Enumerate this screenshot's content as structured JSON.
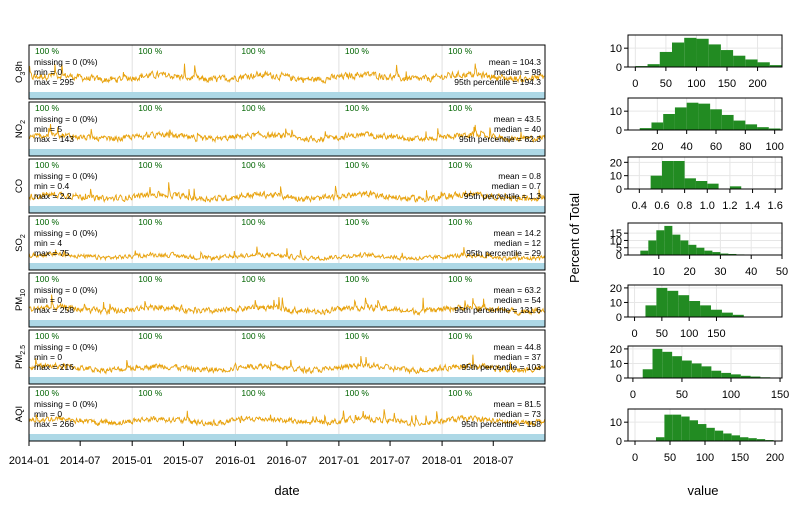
{
  "chart_data": [
    {
      "type": "line",
      "title": "",
      "xlabel": "date",
      "x_ticks": [
        "2014-01",
        "2014-07",
        "2015-01",
        "2015-07",
        "2016-01",
        "2016-07",
        "2017-01",
        "2017-07",
        "2018-01",
        "2018-07"
      ],
      "xlim": [
        "2014-01-01",
        "2018-12-31"
      ],
      "series_color": "#E8A20C",
      "coverage_bar_color": "#ADD8E6",
      "coverage_text_color": "#006400",
      "panels": [
        {
          "label_main": "O",
          "label_sub": "3",
          "label_tail": "8h",
          "coverage": [
            "100 %",
            "100 %",
            "100 %",
            "100 %",
            "100 %"
          ],
          "stats_left": [
            "missing = 0 (0%)",
            "min = 0",
            "max = 295"
          ],
          "stats_right": [
            "mean = 104.3",
            "median = 98",
            "95th percentile = 194.3"
          ],
          "profile": {
            "min": 0,
            "base": 95,
            "spread": 45,
            "max": 295,
            "trend": 8
          }
        },
        {
          "label_main": "NO",
          "label_sub": "2",
          "label_tail": "",
          "coverage": [
            "100 %",
            "100 %",
            "100 %",
            "100 %",
            "100 %"
          ],
          "stats_left": [
            "missing = 0 (0%)",
            "min = 5",
            "max = 143"
          ],
          "stats_right": [
            "mean = 43.5",
            "median = 40",
            "95th percentile = 82.3"
          ],
          "profile": {
            "min": 5,
            "base": 40,
            "spread": 18,
            "max": 143,
            "trend": 0
          }
        },
        {
          "label_main": "CO",
          "label_sub": "",
          "label_tail": "",
          "coverage": [
            "100 %",
            "100 %",
            "100 %",
            "100 %",
            "100 %"
          ],
          "stats_left": [
            "missing = 0 (0%)",
            "min = 0.4",
            "max = 2.2"
          ],
          "stats_right": [
            "mean = 0.8",
            "median = 0.7",
            "95th percentile = 1.3"
          ],
          "profile": {
            "min": 0.4,
            "base": 0.75,
            "spread": 0.25,
            "max": 2.2,
            "trend": 0
          }
        },
        {
          "label_main": "SO",
          "label_sub": "2",
          "label_tail": "",
          "coverage": [
            "100 %",
            "100 %",
            "100 %",
            "100 %",
            "100 %"
          ],
          "stats_left": [
            "missing = 0 (0%)",
            "min = 4",
            "max = 75"
          ],
          "stats_right": [
            "mean = 14.2",
            "median = 12",
            "95th percentile = 29"
          ],
          "profile": {
            "min": 4,
            "base": 13,
            "spread": 7,
            "max": 75,
            "trend": -2
          }
        },
        {
          "label_main": "PM",
          "label_sub": "10",
          "label_tail": "",
          "coverage": [
            "100 %",
            "100 %",
            "100 %",
            "100 %",
            "100 %"
          ],
          "stats_left": [
            "missing = 0 (0%)",
            "min = 0",
            "max = 258"
          ],
          "stats_right": [
            "mean = 63.2",
            "median = 54",
            "95th percentile = 131.6"
          ],
          "profile": {
            "min": 0,
            "base": 58,
            "spread": 35,
            "max": 258,
            "trend": 0
          }
        },
        {
          "label_main": "PM",
          "label_sub": "2.5",
          "label_tail": "",
          "coverage": [
            "100 %",
            "100 %",
            "100 %",
            "100 %",
            "100 %"
          ],
          "stats_left": [
            "missing = 0 (0%)",
            "min = 0",
            "max = 216"
          ],
          "stats_right": [
            "mean = 44.8",
            "median = 37",
            "95th percentile = 103"
          ],
          "profile": {
            "min": 0,
            "base": 40,
            "spread": 28,
            "max": 216,
            "trend": 0
          }
        },
        {
          "label_main": "AQI",
          "label_sub": "",
          "label_tail": "",
          "coverage": [
            "100 %",
            "100 %",
            "100 %",
            "100 %",
            "100 %"
          ],
          "stats_left": [
            "missing = 0 (0%)",
            "min = 0",
            "max = 266"
          ],
          "stats_right": [
            "mean = 81.5",
            "median = 73",
            "95th percentile = 158"
          ],
          "profile": {
            "min": 0,
            "base": 75,
            "spread": 35,
            "max": 266,
            "trend": 0
          }
        }
      ]
    },
    {
      "type": "bar",
      "title": "",
      "xlabel": "value",
      "ylabel": "Percent of Total",
      "bar_color": "#228B22",
      "panels": [
        {
          "name": "O3 8h",
          "xlim": [
            -12,
            240
          ],
          "ylim": [
            0,
            17
          ],
          "x_ticks": [
            0,
            50,
            100,
            150,
            200
          ],
          "y_ticks": [
            0,
            10
          ],
          "bin_width": 20,
          "bins": [
            0,
            20,
            40,
            60,
            80,
            100,
            120,
            140,
            160,
            180,
            200,
            220
          ],
          "values": [
            0.5,
            1.5,
            8,
            13,
            15.5,
            15,
            12,
            9,
            6,
            4,
            2.5,
            1
          ]
        },
        {
          "name": "NO2",
          "xlim": [
            0,
            105
          ],
          "ylim": [
            0,
            17
          ],
          "x_ticks": [
            20,
            40,
            60,
            80,
            100
          ],
          "y_ticks": [
            0,
            10
          ],
          "bin_width": 8,
          "bins": [
            8,
            16,
            24,
            32,
            40,
            48,
            56,
            64,
            72,
            80,
            88,
            96
          ],
          "values": [
            1,
            4,
            8.5,
            12,
            14.5,
            14,
            11,
            8,
            5,
            3,
            1.5,
            0.8
          ]
        },
        {
          "name": "CO",
          "xlim": [
            0.3,
            1.66
          ],
          "ylim": [
            0,
            24
          ],
          "x_ticks": [
            0.4,
            0.6,
            0.8,
            1.0,
            1.2,
            1.4,
            1.6
          ],
          "y_ticks": [
            0,
            10,
            20
          ],
          "bin_width": 0.1,
          "bins": [
            0.5,
            0.6,
            0.7,
            0.8,
            0.9,
            1.0,
            1.2
          ],
          "values": [
            10,
            21,
            21,
            8,
            6,
            4,
            2
          ]
        },
        {
          "name": "SO2",
          "xlim": [
            0,
            50
          ],
          "ylim": [
            0,
            22
          ],
          "x_ticks": [
            10,
            20,
            30,
            40,
            50
          ],
          "y_ticks": [
            0,
            5,
            10,
            15
          ],
          "bin_width": 2.6,
          "bins": [
            4,
            6.6,
            9.2,
            11.8,
            14.4,
            17,
            19.6,
            22.2,
            24.8,
            27.4,
            30,
            32.6,
            35.2
          ],
          "values": [
            3,
            10,
            17,
            20,
            14,
            10,
            7,
            5,
            3,
            2,
            1,
            0.7,
            0.4
          ]
        },
        {
          "name": "PM10",
          "xlim": [
            -12,
            270
          ],
          "ylim": [
            0,
            22
          ],
          "x_ticks": [
            0,
            50,
            100,
            150
          ],
          "y_ticks": [
            0,
            10,
            20
          ],
          "bin_width": 20,
          "bins": [
            20,
            40,
            60,
            80,
            100,
            120,
            140,
            160,
            180
          ],
          "values": [
            8,
            20,
            18,
            15,
            11,
            8,
            5,
            3,
            1.5
          ]
        },
        {
          "name": "PM2.5",
          "xlim": [
            -5,
            152
          ],
          "ylim": [
            0,
            22
          ],
          "x_ticks": [
            0,
            50,
            100,
            150
          ],
          "y_ticks": [
            0,
            10,
            20
          ],
          "bin_width": 10,
          "bins": [
            10,
            20,
            30,
            40,
            50,
            60,
            70,
            80,
            90,
            100,
            110,
            120,
            130
          ],
          "values": [
            6,
            20,
            18,
            15,
            12,
            10,
            8,
            5,
            3.5,
            2.5,
            1.5,
            1,
            0.5
          ]
        },
        {
          "name": "AQI",
          "xlim": [
            -10,
            210
          ],
          "ylim": [
            0,
            17
          ],
          "x_ticks": [
            0,
            50,
            100,
            150,
            200
          ],
          "y_ticks": [
            0,
            10
          ],
          "bin_width": 12,
          "bins": [
            30,
            42,
            54,
            66,
            78,
            90,
            102,
            114,
            126,
            138,
            150,
            162,
            174,
            186
          ],
          "values": [
            2,
            14,
            14,
            13,
            11,
            9,
            7,
            5.5,
            4,
            3,
            2,
            1.5,
            1,
            0.5
          ]
        }
      ]
    }
  ]
}
